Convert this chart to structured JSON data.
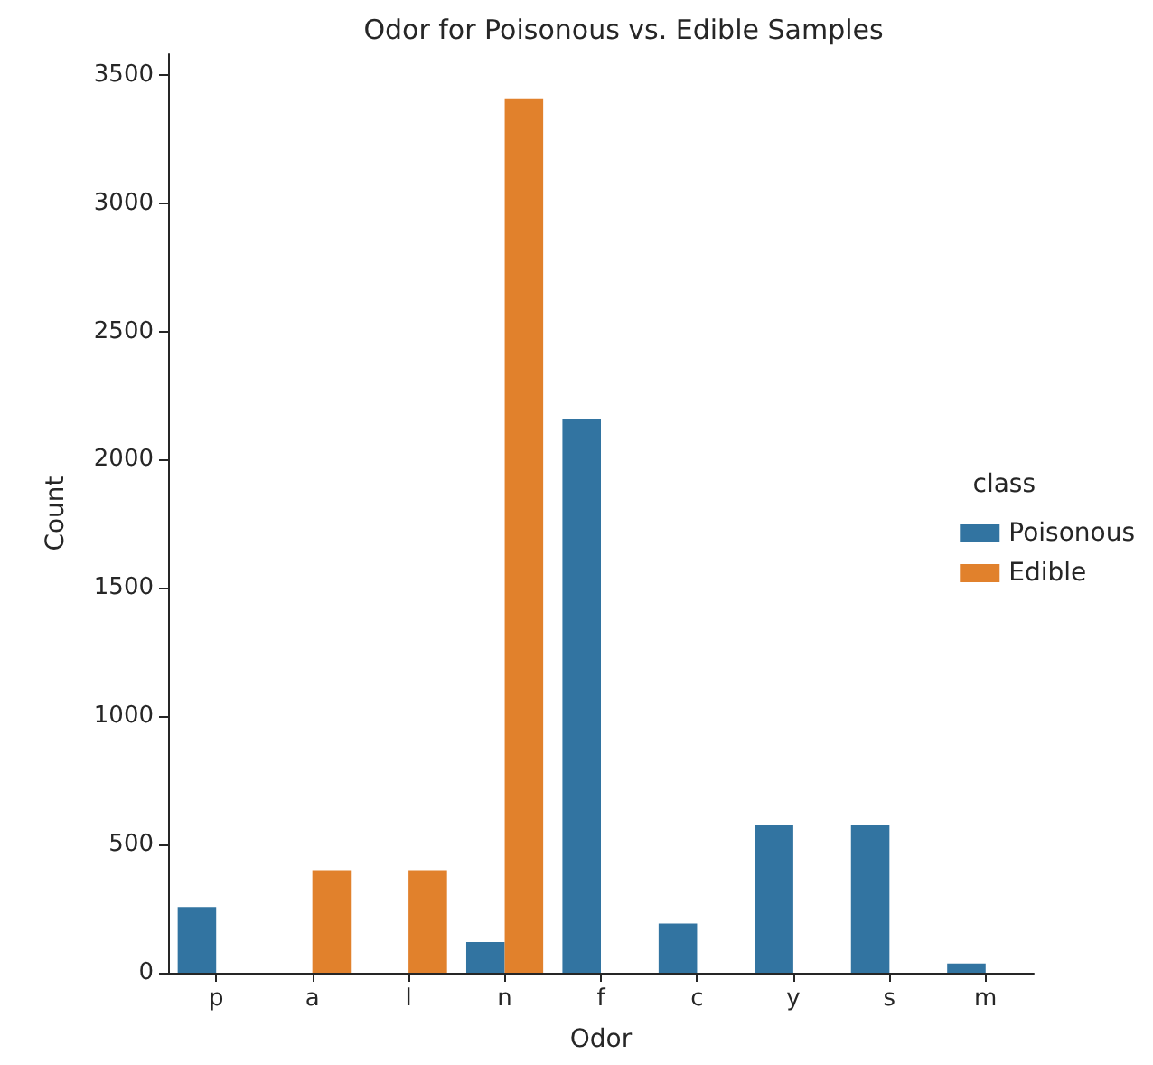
{
  "chart_data": {
    "type": "bar",
    "title": "Odor for Poisonous vs. Edible Samples",
    "xlabel": "Odor",
    "ylabel": "Count",
    "legend_title": "class",
    "categories": [
      "p",
      "a",
      "l",
      "n",
      "f",
      "c",
      "y",
      "s",
      "m"
    ],
    "series": [
      {
        "name": "Poisonous",
        "color": "#3274a1",
        "values": [
          256,
          0,
          0,
          120,
          2160,
          192,
          576,
          576,
          36
        ]
      },
      {
        "name": "Edible",
        "color": "#e1812c",
        "values": [
          0,
          400,
          400,
          3408,
          0,
          0,
          0,
          0,
          0
        ]
      }
    ],
    "ylim": [
      0,
      3580
    ],
    "yticks": [
      0,
      500,
      1000,
      1500,
      2000,
      2500,
      3000,
      3500
    ],
    "grid": false,
    "legend": "right"
  }
}
